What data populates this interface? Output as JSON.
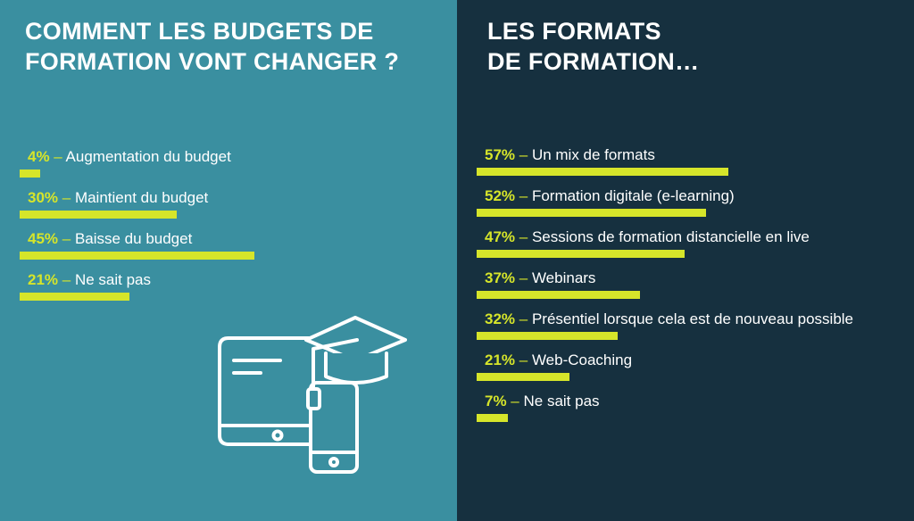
{
  "colors": {
    "left_bg": "#3a8fa0",
    "right_bg": "#16303f",
    "accent": "#d6e52a",
    "text": "#ffffff"
  },
  "left": {
    "title_line1": "COMMENT LES BUDGETS DE",
    "title_line2": "FORMATION VONT CHANGER ?"
  },
  "right": {
    "title_line1": "LES FORMATS",
    "title_line2": "DE FORMATION…"
  },
  "icon": "tablet-phone-graduation-cap-icon",
  "chart_data": [
    {
      "type": "bar",
      "orientation": "horizontal",
      "title": "COMMENT LES BUDGETS DE FORMATION VONT CHANGER ?",
      "unit": "%",
      "categories": [
        "Augmentation du budget",
        "Maintient du budget",
        "Baisse du budget",
        "Ne sait pas"
      ],
      "values": [
        4,
        30,
        45,
        21
      ],
      "labels": [
        "4%",
        "30%",
        "45%",
        "21%"
      ],
      "xlim": [
        0,
        100
      ]
    },
    {
      "type": "bar",
      "orientation": "horizontal",
      "title": "LES FORMATS DE FORMATION…",
      "unit": "%",
      "categories": [
        "Un mix de formats",
        "Formation digitale (e-learning)",
        "Sessions de formation distancielle en live",
        "Webinars",
        "Présentiel lorsque cela est de nouveau possible",
        "Web-Coaching",
        "Ne sait pas"
      ],
      "values": [
        57,
        52,
        47,
        37,
        32,
        21,
        7
      ],
      "labels": [
        "57%",
        "52%",
        "47%",
        "37%",
        "32%",
        "21%",
        "7%"
      ],
      "xlim": [
        0,
        100
      ]
    }
  ]
}
